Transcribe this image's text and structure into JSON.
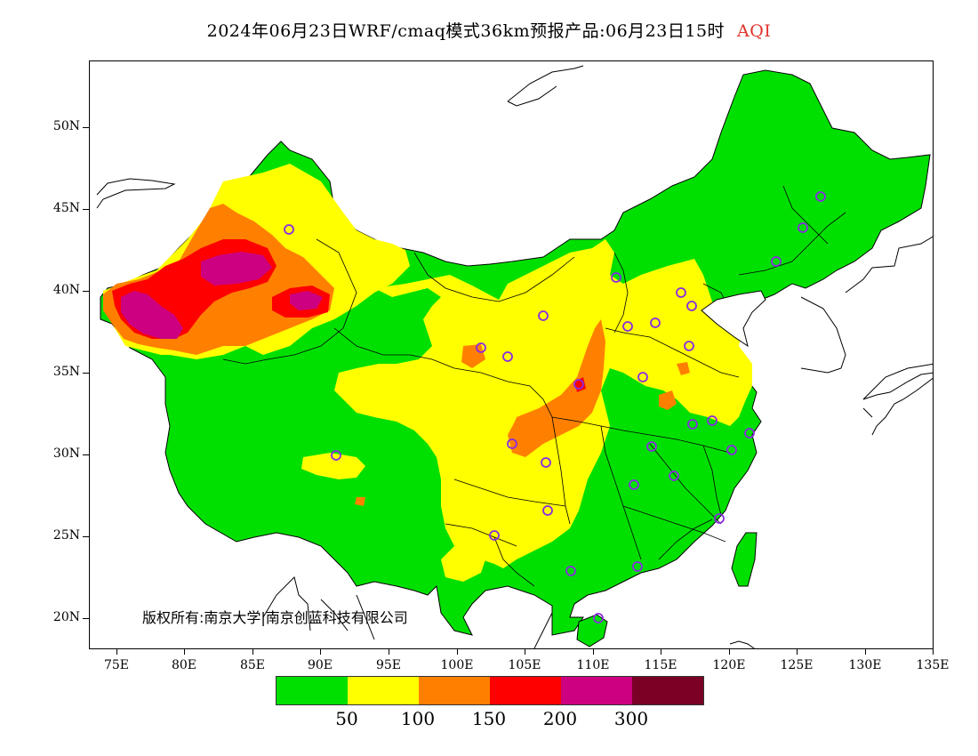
{
  "title": {
    "main": "2024年06月23日WRF/cmaq模式36km预报产品:06月23日15时",
    "variable": "AQI",
    "variable_color": "#e0322a"
  },
  "axes": {
    "y_ticks": [
      "50N",
      "45N",
      "40N",
      "35N",
      "30N",
      "25N",
      "20N"
    ],
    "x_ticks": [
      "75E",
      "80E",
      "85E",
      "90E",
      "95E",
      "100E",
      "105E",
      "110E",
      "115E",
      "120E",
      "125E",
      "130E",
      "135E"
    ]
  },
  "copyright": "版权所有:南京大学|南京创蓝科技有限公司",
  "legend": {
    "colors": [
      "#00e000",
      "#ffff00",
      "#ff8000",
      "#ff0000",
      "#cc0080",
      "#7a0025"
    ],
    "labels": [
      "50",
      "100",
      "150",
      "200",
      "300"
    ]
  },
  "stations": {
    "marker": "circle-marker",
    "color": "#8a2be2"
  }
}
